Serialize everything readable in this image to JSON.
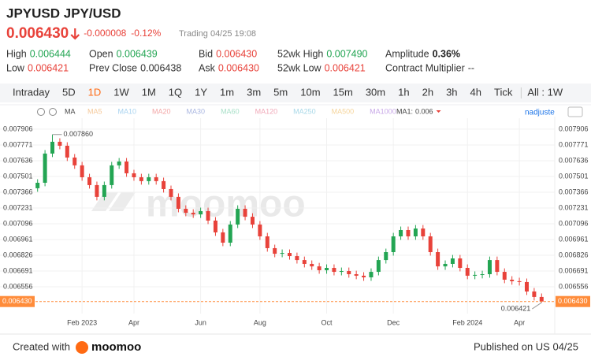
{
  "header": {
    "title": "JPYUSD JPY/USD",
    "price": "0.006430",
    "change": "-0.000008",
    "change_pct": "-0.12%",
    "status": "Trading 04/25 19:08"
  },
  "stats": [
    [
      {
        "label": "High",
        "value": "0.006444"
      },
      {
        "label": "Open",
        "value": "0.006439"
      },
      {
        "label": "Bid",
        "value": "0.006430"
      },
      {
        "label": "52wk High",
        "value": "0.007490"
      },
      {
        "label": "Amplitude",
        "value": "0.36%"
      }
    ],
    [
      {
        "label": "Low",
        "value": "0.006421"
      },
      {
        "label": "Prev Close",
        "value": "0.006438"
      },
      {
        "label": "Ask",
        "value": "0.006430"
      },
      {
        "label": "52wk Low",
        "value": "0.006421"
      },
      {
        "label": "Contract Multiplier",
        "value": "--"
      }
    ]
  ],
  "tabs": [
    "Intraday",
    "5D",
    "1D",
    "1W",
    "1M",
    "1Q",
    "1Y",
    "1m",
    "3m",
    "5m",
    "10m",
    "15m",
    "30m",
    "1h",
    "2h",
    "3h",
    "4h",
    "Tick",
    "All : 1W"
  ],
  "active_tab": "1D",
  "indicators": {
    "main": "MA",
    "lines": [
      "MA5",
      "MA10",
      "MA20",
      "MA30",
      "MA60",
      "MA120",
      "MA250",
      "MA500",
      "MA1000"
    ],
    "ma1_label": "MA1:",
    "ma1_value": "0.006",
    "adjust": "nadjuste"
  },
  "chart_data": {
    "type": "candlestick",
    "categories": [
      null,
      null,
      null,
      null,
      null,
      null,
      "Feb 2023",
      null,
      null,
      null,
      null,
      null,
      null,
      "Apr",
      null,
      null,
      null,
      null,
      null,
      null,
      null,
      null,
      "Jun",
      null,
      null,
      null,
      null,
      null,
      null,
      null,
      "Aug",
      null,
      null,
      null,
      null,
      null,
      null,
      null,
      null,
      "Oct",
      null,
      null,
      null,
      null,
      null,
      null,
      null,
      null,
      "Dec",
      null,
      null,
      null,
      null,
      null,
      null,
      null,
      null,
      null,
      "Feb 2024",
      null,
      null,
      null,
      null,
      null,
      null,
      "Apr",
      null,
      null,
      null
    ],
    "open": [
      0.0074,
      0.007447,
      0.007697,
      0.007798,
      0.007764,
      0.007663,
      0.007596,
      0.007494,
      0.007427,
      0.007326,
      0.007427,
      0.007596,
      0.007629,
      0.007528,
      0.007494,
      0.007461,
      0.007494,
      0.007461,
      0.007393,
      0.007326,
      0.007224,
      0.00719,
      0.007176,
      0.007204,
      0.007123,
      0.007022,
      0.006934,
      0.007089,
      0.007224,
      0.007156,
      0.007089,
      0.006988,
      0.006887,
      0.006839,
      0.006846,
      0.006819,
      0.006785,
      0.006752,
      0.006731,
      0.006698,
      0.006718,
      0.006684,
      0.006691,
      0.006664,
      0.006651,
      0.006637,
      0.006684,
      0.006785,
      0.006853,
      0.006988,
      0.007042,
      0.006988,
      0.007055,
      0.006988,
      0.006853,
      0.006731,
      0.006752,
      0.006799,
      0.006718,
      0.006651,
      0.006658,
      0.006664,
      0.006785,
      0.006684,
      0.006617,
      0.006604,
      0.006597,
      0.006516,
      0.006469
    ],
    "high": [
      0.007477,
      0.007727,
      0.00786,
      0.007828,
      0.007794,
      0.007693,
      0.007626,
      0.007524,
      0.007457,
      0.007457,
      0.007626,
      0.007659,
      0.007659,
      0.007558,
      0.007524,
      0.007524,
      0.007524,
      0.007491,
      0.007423,
      0.007356,
      0.007254,
      0.00722,
      0.007234,
      0.007234,
      0.007153,
      0.007052,
      0.007119,
      0.007254,
      0.007254,
      0.007186,
      0.007119,
      0.007018,
      0.006917,
      0.006876,
      0.006876,
      0.006849,
      0.006815,
      0.006782,
      0.006761,
      0.006748,
      0.006748,
      0.006721,
      0.006721,
      0.006694,
      0.006681,
      0.006714,
      0.006815,
      0.006883,
      0.007018,
      0.007072,
      0.007072,
      0.007085,
      0.007085,
      0.007018,
      0.006883,
      0.006782,
      0.006829,
      0.006829,
      0.006748,
      0.006688,
      0.006694,
      0.006815,
      0.006815,
      0.006714,
      0.006647,
      0.006634,
      0.006627,
      0.006546,
      0.006499
    ],
    "low": [
      0.00737,
      0.007417,
      0.007667,
      0.007734,
      0.007633,
      0.007566,
      0.007464,
      0.007397,
      0.007296,
      0.007296,
      0.007397,
      0.007566,
      0.007498,
      0.007464,
      0.007431,
      0.007431,
      0.007431,
      0.007363,
      0.007296,
      0.007194,
      0.00716,
      0.007146,
      0.007146,
      0.007093,
      0.006992,
      0.006904,
      0.006904,
      0.007059,
      0.007126,
      0.007059,
      0.006958,
      0.006857,
      0.006809,
      0.006809,
      0.006789,
      0.006755,
      0.006722,
      0.006701,
      0.006668,
      0.006668,
      0.006654,
      0.006654,
      0.006634,
      0.006621,
      0.006607,
      0.006607,
      0.006654,
      0.006755,
      0.006823,
      0.006958,
      0.006958,
      0.006958,
      0.006958,
      0.006823,
      0.006701,
      0.006701,
      0.006722,
      0.006688,
      0.006621,
      0.006621,
      0.006628,
      0.006634,
      0.006654,
      0.006587,
      0.006574,
      0.006567,
      0.006486,
      0.006439,
      0.006421
    ],
    "close": [
      0.007447,
      0.007697,
      0.007798,
      0.007764,
      0.007663,
      0.007596,
      0.007494,
      0.007427,
      0.007326,
      0.007427,
      0.007596,
      0.007629,
      0.007528,
      0.007494,
      0.007461,
      0.007494,
      0.007461,
      0.007393,
      0.007326,
      0.007224,
      0.00719,
      0.007176,
      0.007204,
      0.007123,
      0.007022,
      0.006934,
      0.007089,
      0.007224,
      0.007156,
      0.007089,
      0.006988,
      0.006887,
      0.006839,
      0.006846,
      0.006819,
      0.006785,
      0.006752,
      0.006731,
      0.006698,
      0.006718,
      0.006684,
      0.006691,
      0.006664,
      0.006651,
      0.006637,
      0.006684,
      0.006785,
      0.006853,
      0.006988,
      0.007042,
      0.006988,
      0.007055,
      0.006988,
      0.006853,
      0.006731,
      0.006752,
      0.006799,
      0.006718,
      0.006651,
      0.006658,
      0.006664,
      0.006785,
      0.006684,
      0.006617,
      0.006604,
      0.006597,
      0.006516,
      0.006469,
      0.00643
    ],
    "ylim": [
      0.006347,
      0.008
    ],
    "yticks": [
      0.007906,
      0.007771,
      0.007636,
      0.007501,
      0.007366,
      0.007231,
      0.007096,
      0.006961,
      0.006826,
      0.006691,
      0.006556
    ],
    "grid": true,
    "up_color": "#23a553",
    "down_color": "#e8423a",
    "price_line": {
      "value": 0.00643,
      "label": "0.006430"
    },
    "annotations": [
      {
        "value": 0.00786,
        "label": "0.007860"
      },
      {
        "value": 0.006421,
        "label": "0.006421"
      }
    ]
  },
  "watermark": "moomoo",
  "footer": {
    "created": "Created with",
    "brand": "moomoo",
    "published": "Published on US 04/25"
  }
}
